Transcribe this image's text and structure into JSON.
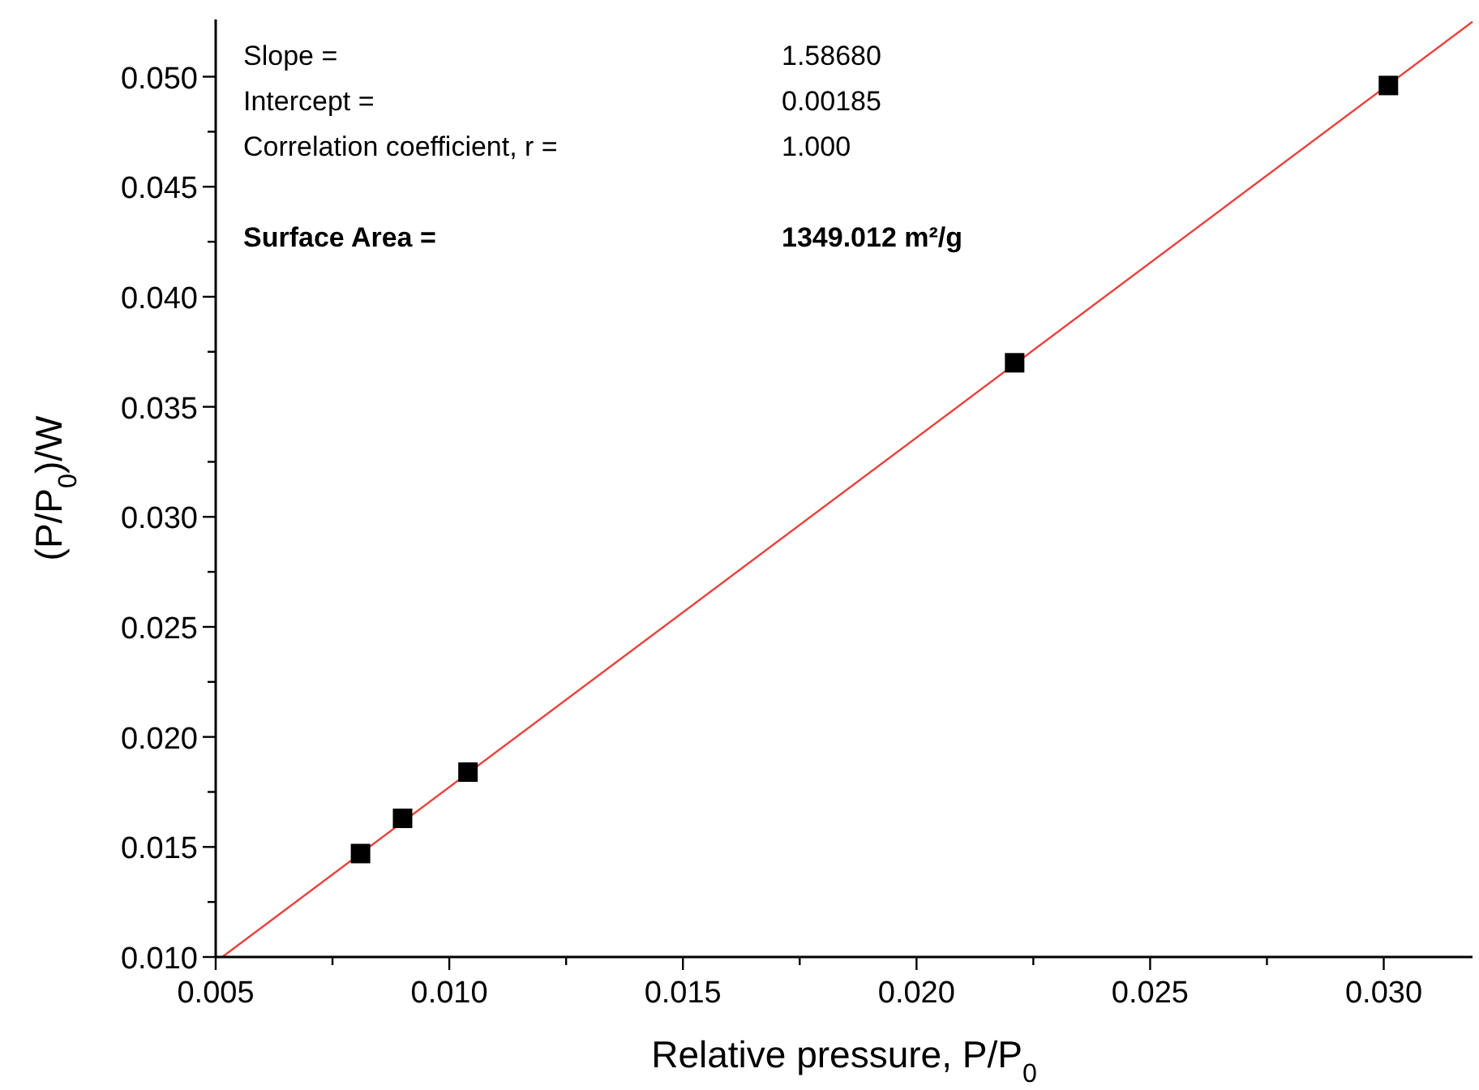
{
  "chart_data": {
    "type": "scatter",
    "xlabel": "Relative pressure, P/P$_{0}$",
    "ylabel": "(P/P$_{0}$)/W",
    "xlim": [
      0.005,
      0.0319
    ],
    "ylim": [
      0.01,
      0.0526
    ],
    "xticks": [
      0.005,
      {
        "value": 0.0075,
        "label": null
      },
      {
        "value": 0.01,
        "label": "0.010"
      },
      {
        "value": 0.0125,
        "label": null
      },
      {
        "value": 0.015,
        "label": "0.015"
      },
      {
        "value": 0.0175,
        "label": null
      },
      {
        "value": 0.02,
        "label": "0.020"
      },
      {
        "value": 0.0225,
        "label": null
      },
      {
        "value": 0.025,
        "label": "0.025"
      },
      {
        "value": 0.0275,
        "label": null
      },
      {
        "value": 0.03,
        "label": "0.030"
      }
    ],
    "yticks": [
      {
        "value": 0.01,
        "label": "0.010"
      },
      {
        "value": 0.0125,
        "label": null
      },
      {
        "value": 0.015,
        "label": "0.015"
      },
      {
        "value": 0.0175,
        "label": null
      },
      {
        "value": 0.02,
        "label": "0.020"
      },
      {
        "value": 0.0225,
        "label": null
      },
      {
        "value": 0.025,
        "label": "0.025"
      },
      {
        "value": 0.0275,
        "label": null
      },
      {
        "value": 0.03,
        "label": "0.030"
      },
      {
        "value": 0.0325,
        "label": null
      },
      {
        "value": 0.035,
        "label": "0.035"
      },
      {
        "value": 0.0375,
        "label": null
      },
      {
        "value": 0.04,
        "label": "0.040"
      },
      {
        "value": 0.0425,
        "label": null
      },
      {
        "value": 0.045,
        "label": "0.045"
      },
      {
        "value": 0.0475,
        "label": null
      },
      {
        "value": 0.05,
        "label": "0.050"
      }
    ],
    "grid": false,
    "marker": "square",
    "series": [
      {
        "type": "line",
        "color": "#e8413c",
        "x": [
          0.00514,
          0.0319
        ],
        "values": [
          0.01,
          0.0525
        ],
        "marker": "none",
        "line_style": "solid"
      },
      {
        "color": "#000000",
        "x": [
          0.0081,
          0.009,
          0.0104,
          0.0221,
          0.0301
        ],
        "values": [
          0.0147,
          0.0163,
          0.0184,
          0.037,
          0.0496
        ]
      }
    ],
    "annotations": [
      "Slope =",
      "1.58680",
      "Intercept =",
      "0.00185",
      "Correlation coefficient, r =",
      "1.000",
      "Surface Area =",
      "1349.012 m²/g"
    ]
  }
}
